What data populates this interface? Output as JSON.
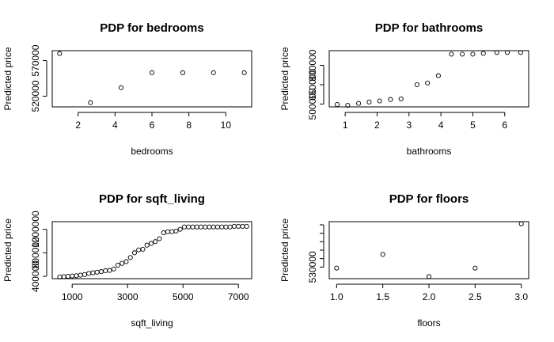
{
  "chart_data": [
    {
      "type": "scatter",
      "title": "PDP for bedrooms",
      "xlabel": "bedrooms",
      "ylabel": "Predicted price",
      "xlim": [
        0.6,
        11.4
      ],
      "ylim": [
        505000,
        584000
      ],
      "xticks": [
        2,
        4,
        6,
        8,
        10
      ],
      "yticks": [
        520000,
        570000
      ],
      "x": [
        1,
        2.67,
        4.33,
        6,
        7.67,
        9.33,
        11
      ],
      "y": [
        580000,
        511000,
        532000,
        553000,
        553000,
        553000,
        553000
      ]
    },
    {
      "type": "scatter",
      "title": "PDP for bathrooms",
      "xlabel": "bathrooms",
      "ylabel": "Predicted price",
      "xlim": [
        0.5,
        6.75
      ],
      "ylim": [
        478000,
        914000
      ],
      "xticks": [
        1,
        2,
        3,
        4,
        5,
        6
      ],
      "yticks": [
        500000,
        650000,
        800000
      ],
      "x": [
        0.75,
        1.08,
        1.42,
        1.75,
        2.08,
        2.42,
        2.75,
        3.25,
        3.58,
        3.92,
        4.33,
        4.67,
        5,
        5.33,
        5.75,
        6.08,
        6.5
      ],
      "y": [
        496000,
        490000,
        505000,
        516000,
        524000,
        535000,
        540000,
        650000,
        663000,
        720000,
        887000,
        887000,
        887000,
        893000,
        900000,
        900000,
        900000
      ]
    },
    {
      "type": "scatter",
      "title": "PDP for sqft_living",
      "xlabel": "sqft_living",
      "ylabel": "Predicted price",
      "xlim": [
        280,
        7480
      ],
      "ylim": [
        360000,
        1330000
      ],
      "xticks": [
        1000,
        3000,
        5000,
        7000
      ],
      "yticks": [
        400000,
        800000,
        1200000
      ],
      "x": [
        550,
        700,
        850,
        1000,
        1150,
        1300,
        1450,
        1600,
        1750,
        1900,
        2050,
        2200,
        2350,
        2500,
        2650,
        2800,
        2950,
        3100,
        3250,
        3400,
        3550,
        3700,
        3850,
        4000,
        4150,
        4300,
        4450,
        4600,
        4750,
        4900,
        5050,
        5200,
        5350,
        5500,
        5650,
        5800,
        5950,
        6100,
        6250,
        6400,
        6550,
        6700,
        6850,
        7000,
        7150,
        7300
      ],
      "y": [
        390000,
        395000,
        400000,
        405000,
        410000,
        420000,
        430000,
        450000,
        460000,
        470000,
        480000,
        495000,
        500000,
        525000,
        590000,
        620000,
        650000,
        720000,
        800000,
        850000,
        860000,
        930000,
        960000,
        990000,
        1040000,
        1140000,
        1160000,
        1160000,
        1170000,
        1200000,
        1240000,
        1240000,
        1240000,
        1240000,
        1240000,
        1240000,
        1240000,
        1240000,
        1240000,
        1240000,
        1240000,
        1240000,
        1250000,
        1250000,
        1250000,
        1250000
      ]
    },
    {
      "type": "scatter",
      "title": "PDP for floors",
      "xlabel": "floors",
      "ylabel": "Predicted price",
      "xlim": [
        0.92,
        3.08
      ],
      "ylim": [
        519000,
        573000
      ],
      "xticks": [
        1.0,
        1.5,
        2.0,
        2.5,
        3.0
      ],
      "xtick_labels": [
        "1.0",
        "1.5",
        "2.0",
        "2.5",
        "3.0"
      ],
      "yticks": [
        530000
      ],
      "x": [
        1.0,
        1.5,
        2.0,
        2.5,
        3.0
      ],
      "y": [
        529000,
        542000,
        521000,
        529000,
        571000
      ]
    }
  ]
}
